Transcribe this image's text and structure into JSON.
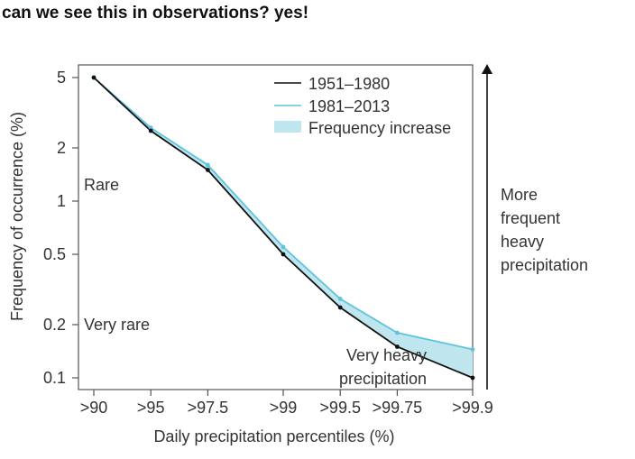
{
  "header": {
    "question": "can we see this in observations? yes!"
  },
  "colors": {
    "series_1951_1980": "#111111",
    "series_1981_2013": "#5ec4db",
    "fill_increase": "#bfe6ee"
  },
  "chart_data": {
    "type": "line",
    "categories": [
      ">90",
      ">95",
      ">97.5",
      ">99",
      ">99.5",
      ">99.75",
      ">99.9"
    ],
    "x": [
      90,
      95,
      97.5,
      99,
      99.5,
      99.75,
      99.9
    ],
    "x_scale": "log of (100 - percentile)",
    "series": [
      {
        "name": "1951–1980",
        "values": [
          5,
          2.5,
          1.5,
          0.5,
          0.25,
          0.15,
          0.1
        ]
      },
      {
        "name": "1981–2013",
        "values": [
          5,
          2.6,
          1.6,
          0.55,
          0.28,
          0.18,
          0.145
        ]
      }
    ],
    "fill_between": {
      "name": "Frequency increase",
      "lower": "1951–1980",
      "upper": "1981–2013"
    },
    "xlabel": "Daily precipitation percentiles (%)",
    "ylabel": "Frequency of occurrence (%)",
    "y_scale": "log",
    "yticks": [
      5,
      2,
      1,
      0.5,
      0.2,
      0.1
    ],
    "ytick_labels": [
      "5",
      "2",
      "1",
      "0.5",
      "0.2",
      "0.1"
    ],
    "ylim": [
      0.09,
      5.6
    ],
    "grid": false,
    "legend": "top-right",
    "annotations": {
      "rare": "Rare",
      "very_rare": "Very rare",
      "very_heavy_1": "Very heavy",
      "very_heavy_2": "precipitation",
      "arrow_1": "More",
      "arrow_2": "frequent",
      "arrow_3": "heavy",
      "arrow_4": "precipitation"
    }
  }
}
